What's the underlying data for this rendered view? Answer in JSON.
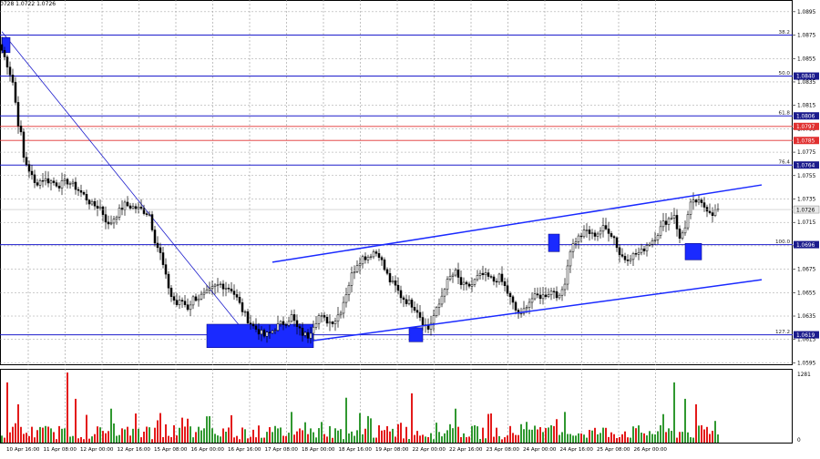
{
  "header": {
    "ohlc_text": "0728 1.0722 1.0726"
  },
  "colors": {
    "background": "#ffffff",
    "grid": "#9a9a9a",
    "candle": "#000000",
    "fib_line": "#1c1ccc",
    "red_level": "#e03030",
    "channel": "#1a2aff",
    "zone": "#1a2aff",
    "current_price_bg": "#1a1a8c",
    "vol_up": "#1a8c1a",
    "vol_down": "#e00000"
  },
  "chart_data": {
    "type": "candlestick",
    "instrument_timeframe": "H3",
    "ylim": [
      1.0593,
      1.0905
    ],
    "y_ticks": [
      "1.0895",
      "1.0875",
      "1.0855",
      "1.0835",
      "1.0815",
      "1.0795",
      "1.0775",
      "1.0755",
      "1.0735",
      "1.0715",
      "1.0695",
      "1.0675",
      "1.0655",
      "1.0635",
      "1.0615",
      "1.0595"
    ],
    "price_tags": [
      {
        "value": 1.084,
        "label": "1.0840",
        "style": "blue"
      },
      {
        "value": 1.0806,
        "label": "1.0806",
        "style": "blue"
      },
      {
        "value": 1.0797,
        "label": "1.0797",
        "style": "red"
      },
      {
        "value": 1.0785,
        "label": "1.0785",
        "style": "red"
      },
      {
        "value": 1.0764,
        "label": "1.0764",
        "style": "blue"
      },
      {
        "value": 1.0726,
        "label": "1.0726",
        "style": "current"
      },
      {
        "value": 1.0696,
        "label": "1.0696",
        "style": "blue"
      },
      {
        "value": 1.0619,
        "label": "1.0619",
        "style": "blue"
      }
    ],
    "fib_levels": [
      {
        "label": "38.2",
        "value": 1.0875
      },
      {
        "label": "50.0",
        "value": 1.084
      },
      {
        "label": "61.8",
        "value": 1.0806
      },
      {
        "label": "76.4",
        "value": 1.0764
      },
      {
        "label": "100.0",
        "value": 1.0696
      },
      {
        "label": "127.2",
        "value": 1.0619
      }
    ],
    "red_levels": [
      1.0797,
      1.0785
    ],
    "x_labels": [
      "10 Apr 16:00",
      "11 Apr 08:00",
      "12 Apr 00:00",
      "12 Apr 16:00",
      "15 Apr 08:00",
      "16 Apr 00:00",
      "16 Apr 16:00",
      "17 Apr 08:00",
      "18 Apr 00:00",
      "18 Apr 16:00",
      "19 Apr 08:00",
      "22 Apr 00:00",
      "22 Apr 16:00",
      "23 Apr 08:00",
      "24 Apr 00:00",
      "24 Apr 16:00",
      "25 Apr 08:00",
      "26 Apr 00:00"
    ],
    "close_path": [
      [
        0,
        1.0862
      ],
      [
        2,
        1.085
      ],
      [
        4,
        1.0835
      ],
      [
        6,
        1.08
      ],
      [
        7,
        1.079
      ],
      [
        8,
        1.077
      ],
      [
        10,
        1.076
      ],
      [
        12,
        1.0748
      ],
      [
        15,
        1.0752
      ],
      [
        18,
        1.075
      ],
      [
        21,
        1.0747
      ],
      [
        24,
        1.075
      ],
      [
        27,
        1.0745
      ],
      [
        30,
        1.0738
      ],
      [
        33,
        1.073
      ],
      [
        36,
        1.0728
      ],
      [
        39,
        1.0712
      ],
      [
        42,
        1.0722
      ],
      [
        45,
        1.073
      ],
      [
        48,
        1.0728
      ],
      [
        51,
        1.0726
      ],
      [
        54,
        1.0722
      ],
      [
        56,
        1.07
      ],
      [
        58,
        1.0688
      ],
      [
        60,
        1.0668
      ],
      [
        62,
        1.0652
      ],
      [
        64,
        1.0645
      ],
      [
        66,
        1.0648
      ],
      [
        68,
        1.0642
      ],
      [
        70,
        1.065
      ],
      [
        72,
        1.0651
      ],
      [
        74,
        1.0653
      ],
      [
        76,
        1.0656
      ],
      [
        78,
        1.066
      ],
      [
        80,
        1.0662
      ],
      [
        82,
        1.066
      ],
      [
        84,
        1.0658
      ],
      [
        86,
        1.065
      ],
      [
        88,
        1.064
      ],
      [
        90,
        1.0632
      ],
      [
        92,
        1.0626
      ],
      [
        94,
        1.0622
      ],
      [
        96,
        1.0618
      ],
      [
        98,
        1.062
      ],
      [
        100,
        1.0625
      ],
      [
        102,
        1.0628
      ],
      [
        104,
        1.063
      ],
      [
        106,
        1.0635
      ],
      [
        108,
        1.0625
      ],
      [
        110,
        1.062
      ],
      [
        112,
        1.0618
      ],
      [
        114,
        1.0628
      ],
      [
        116,
        1.0635
      ],
      [
        118,
        1.0632
      ],
      [
        120,
        1.063
      ],
      [
        122,
        1.0632
      ],
      [
        124,
        1.064
      ],
      [
        126,
        1.0655
      ],
      [
        128,
        1.067
      ],
      [
        130,
        1.068
      ],
      [
        132,
        1.0685
      ],
      [
        134,
        1.0686
      ],
      [
        136,
        1.069
      ],
      [
        138,
        1.0688
      ],
      [
        140,
        1.0675
      ],
      [
        142,
        1.0665
      ],
      [
        144,
        1.066
      ],
      [
        146,
        1.0652
      ],
      [
        148,
        1.0648
      ],
      [
        150,
        1.0645
      ],
      [
        152,
        1.064
      ],
      [
        154,
        1.063
      ],
      [
        156,
        1.0624
      ],
      [
        158,
        1.0635
      ],
      [
        160,
        1.0645
      ],
      [
        162,
        1.066
      ],
      [
        164,
        1.0668
      ],
      [
        166,
        1.0672
      ],
      [
        168,
        1.0662
      ],
      [
        170,
        1.066
      ],
      [
        172,
        1.0662
      ],
      [
        174,
        1.0668
      ],
      [
        176,
        1.067
      ],
      [
        178,
        1.0668
      ],
      [
        180,
        1.0665
      ],
      [
        182,
        1.0668
      ],
      [
        184,
        1.066
      ],
      [
        186,
        1.065
      ],
      [
        188,
        1.064
      ],
      [
        190,
        1.0635
      ],
      [
        192,
        1.0645
      ],
      [
        194,
        1.065
      ],
      [
        196,
        1.0652
      ],
      [
        198,
        1.0652
      ],
      [
        200,
        1.0655
      ],
      [
        202,
        1.0657
      ],
      [
        204,
        1.065
      ],
      [
        206,
        1.0665
      ],
      [
        208,
        1.0692
      ],
      [
        210,
        1.07
      ],
      [
        212,
        1.0704
      ],
      [
        214,
        1.0708
      ],
      [
        216,
        1.0704
      ],
      [
        218,
        1.0706
      ],
      [
        220,
        1.071
      ],
      [
        222,
        1.0708
      ],
      [
        224,
        1.0702
      ],
      [
        226,
        1.0688
      ],
      [
        228,
        1.0684
      ],
      [
        230,
        1.0686
      ],
      [
        232,
        1.0688
      ],
      [
        234,
        1.069
      ],
      [
        236,
        1.0696
      ],
      [
        238,
        1.07
      ],
      [
        240,
        1.0706
      ],
      [
        242,
        1.0714
      ],
      [
        244,
        1.0718
      ],
      [
        246,
        1.0722
      ],
      [
        248,
        1.07
      ],
      [
        250,
        1.0712
      ],
      [
        252,
        1.073
      ],
      [
        254,
        1.0733
      ],
      [
        256,
        1.073
      ],
      [
        258,
        1.0727
      ],
      [
        260,
        1.0723
      ],
      [
        262,
        1.0726
      ]
    ],
    "sample_count": 263,
    "bar_width": 2,
    "fib_line": {
      "from": [
        0,
        1.0878
      ],
      "to": [
        90,
        1.0618
      ]
    },
    "channel_upper": {
      "from": [
        99,
        1.0681
      ],
      "to": [
        278,
        1.0747
      ]
    },
    "channel_lower": {
      "from": [
        114,
        1.0614
      ],
      "to": [
        278,
        1.0666
      ]
    },
    "zones": [
      {
        "x0": 0,
        "x1": 3,
        "y0": 1.0873,
        "y1": 1.086
      },
      {
        "x0": 75,
        "x1": 114,
        "y0": 1.0628,
        "y1": 1.0608
      },
      {
        "x0": 149,
        "x1": 154,
        "y0": 1.0625,
        "y1": 1.0613
      },
      {
        "x0": 200,
        "x1": 204,
        "y0": 1.0705,
        "y1": 1.069
      },
      {
        "x0": 250,
        "x1": 256,
        "y0": 1.0697,
        "y1": 1.0683
      }
    ],
    "volume": {
      "max_label": "1281",
      "min_label": "0",
      "max": 1281,
      "seed": 7,
      "spikes": [
        [
          2,
          1100
        ],
        [
          6,
          700
        ],
        [
          24,
          1281
        ],
        [
          27,
          800
        ],
        [
          40,
          620
        ],
        [
          58,
          540
        ],
        [
          75,
          480
        ],
        [
          84,
          500
        ],
        [
          106,
          560
        ],
        [
          126,
          820
        ],
        [
          150,
          900
        ],
        [
          166,
          620
        ],
        [
          206,
          560
        ],
        [
          242,
          520
        ],
        [
          246,
          1100
        ],
        [
          250,
          800
        ],
        [
          254,
          700
        ]
      ]
    }
  }
}
